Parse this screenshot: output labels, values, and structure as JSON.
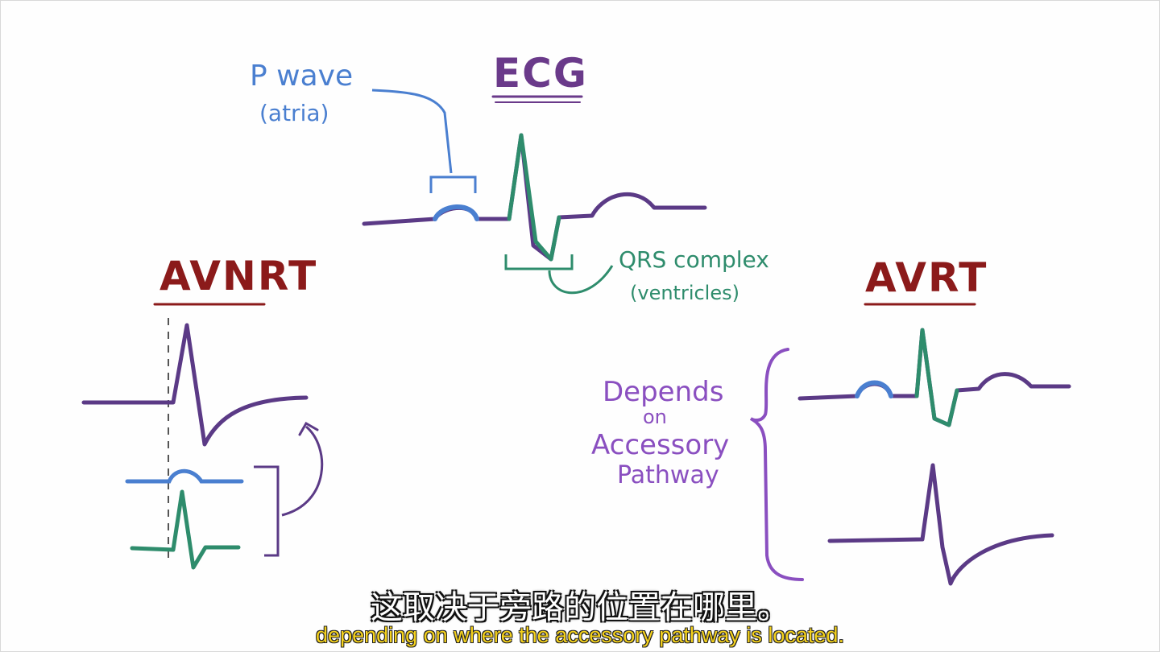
{
  "labels": {
    "ecg_title": "ECG",
    "p_wave": "P wave",
    "p_wave_sub": "(atria)",
    "qrs": "QRS complex",
    "qrs_sub": "(ventricles)",
    "avnrt_title": "AVNRT",
    "avrt_title": "AVRT",
    "depends_1": "Depends",
    "depends_2": "on",
    "depends_3": "Accessory",
    "depends_4": "Pathway"
  },
  "subtitles": {
    "chinese": "这取决于旁路的位置在哪里。",
    "english": "depending on where the accessory pathway is located."
  },
  "colors": {
    "purple": "#5b3a86",
    "blue": "#4a7fd0",
    "green": "#2e8c6c",
    "red": "#8b1a1a",
    "label_purple": "#8a4fc0",
    "subtitle_yellow": "#f5d21c"
  }
}
